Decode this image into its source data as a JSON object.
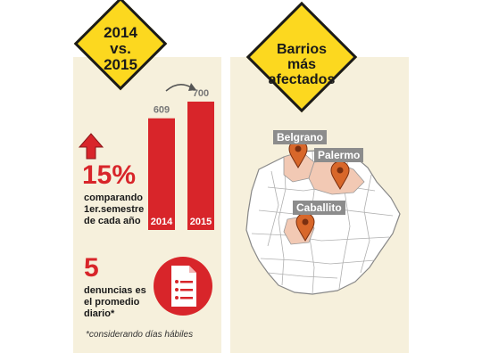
{
  "left": {
    "sign_line1": "2014",
    "sign_line2": "vs.",
    "sign_line3": "2015",
    "pct": "15%",
    "pct_desc_lines": [
      "comparando",
      "1er.semestre",
      "de cada año"
    ],
    "daily": "5",
    "daily_desc_lines": [
      "denuncias es",
      "el promedio",
      "diario*"
    ],
    "footnote": "*considerando días hábiles"
  },
  "right": {
    "sign_line1": "Barrios",
    "sign_line2": "más",
    "sign_line3": "afectados",
    "neighborhoods": [
      "Belgrano",
      "Palermo",
      "Caballito"
    ]
  },
  "colors": {
    "red": "#d8252a",
    "yellow": "#fcd81f",
    "panel": "#f6f0dc",
    "map_highlight": "#f2c9b4"
  },
  "chart_data": {
    "type": "bar",
    "categories": [
      "2014",
      "2015"
    ],
    "values": [
      609,
      700
    ],
    "ylim": [
      0,
      700
    ]
  }
}
